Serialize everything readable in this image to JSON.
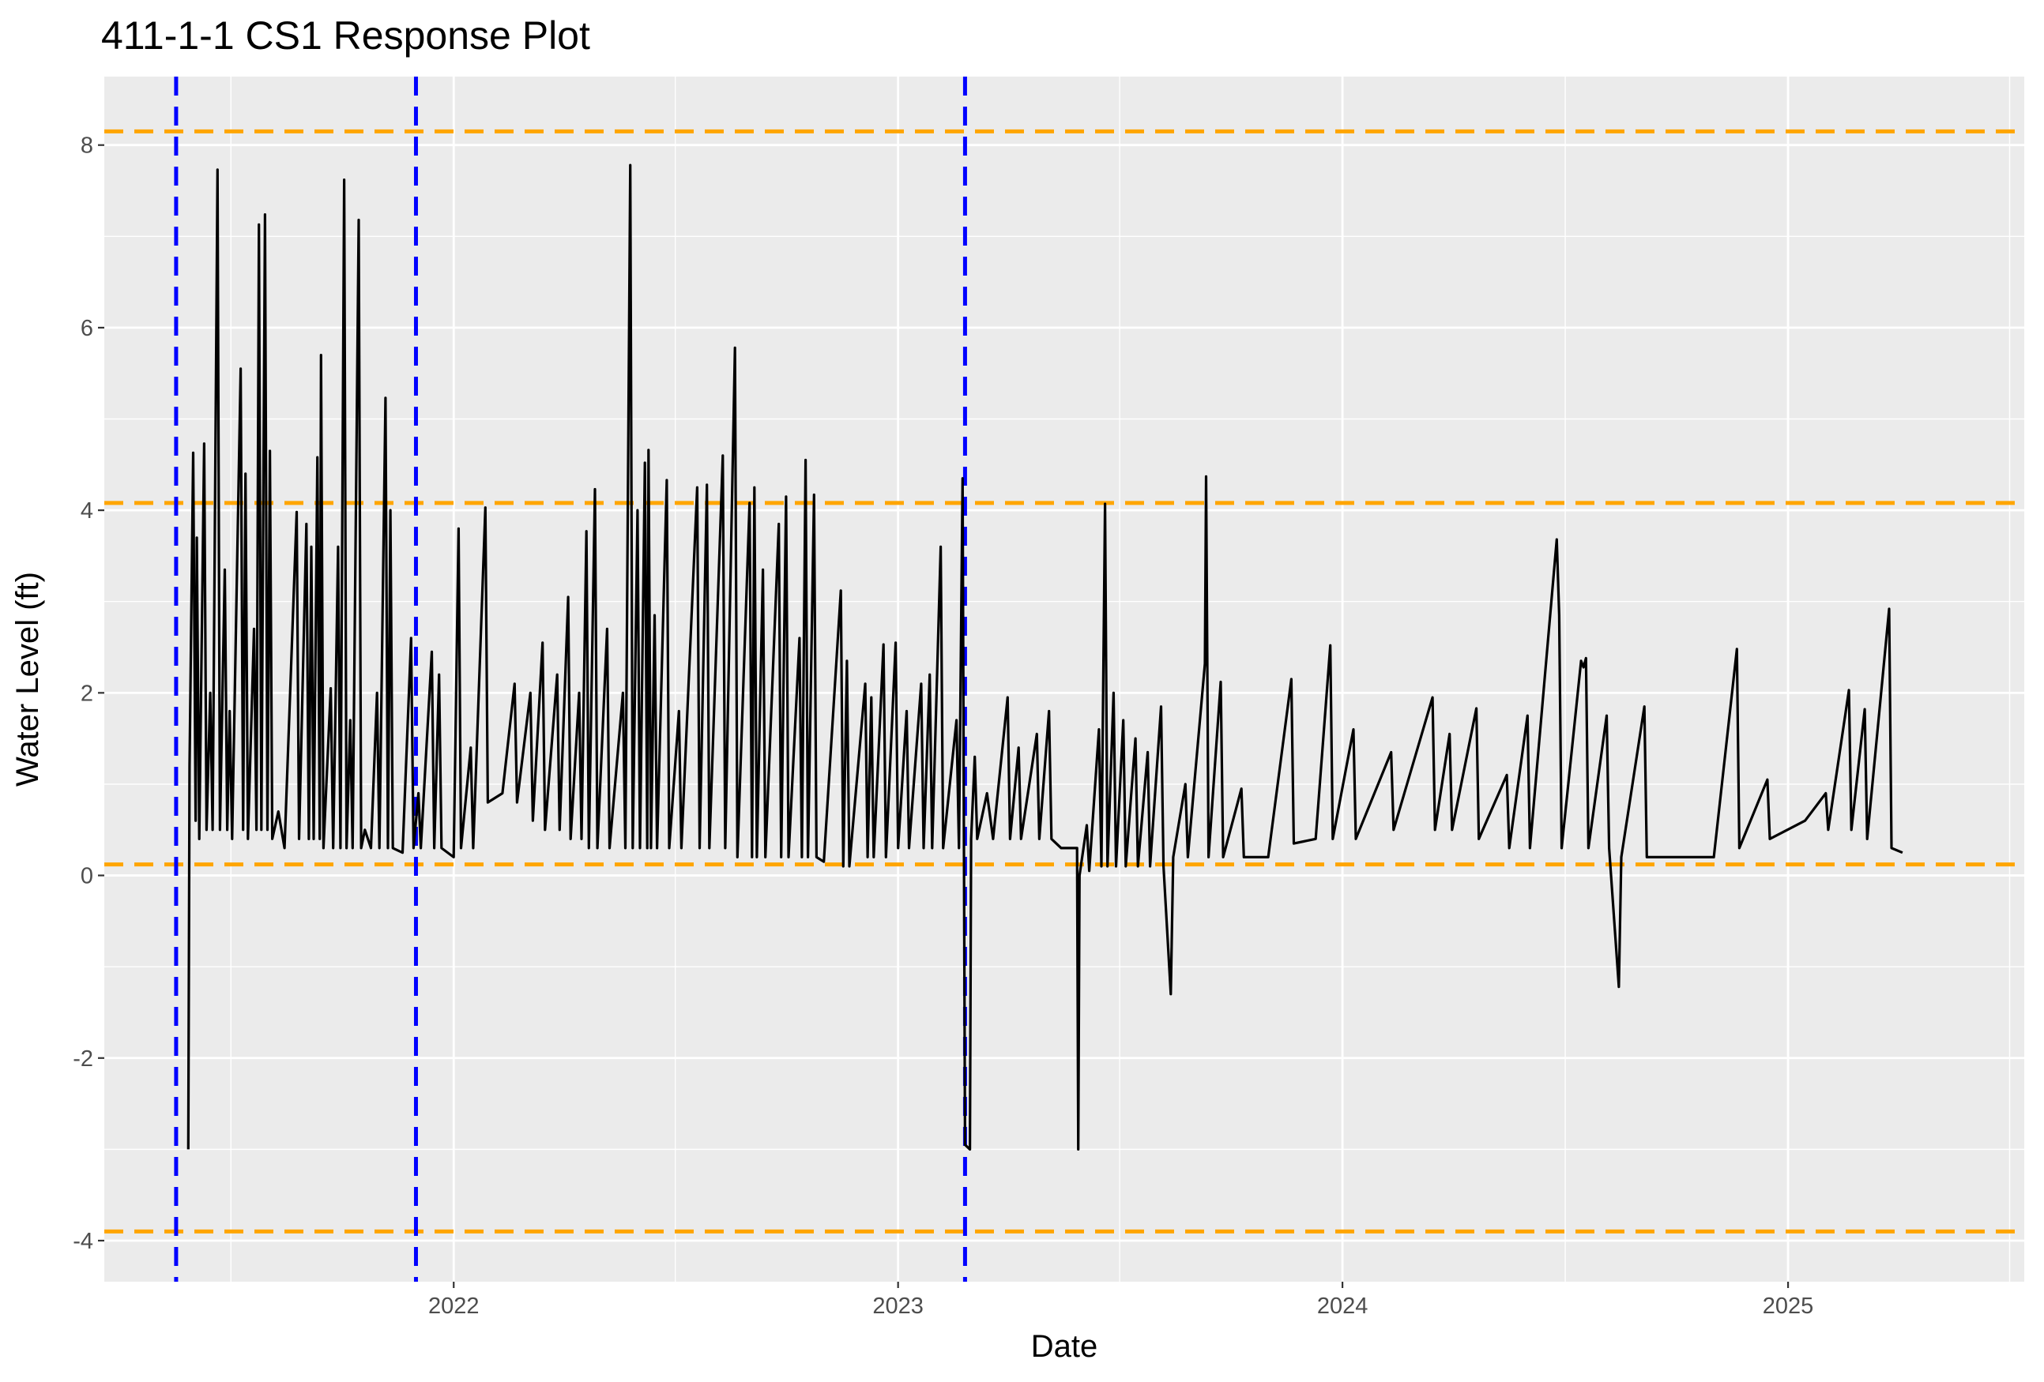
{
  "chart_data": {
    "type": "line",
    "title": "411-1-1 CS1 Response Plot",
    "xlabel": "Date",
    "ylabel": "Water Level (ft)",
    "xlim": [
      "2021-03-20",
      "2025-07-14"
    ],
    "ylim": [
      -4.45,
      8.75
    ],
    "x_ticks": [
      {
        "label": "2022",
        "date": "2022-01-01"
      },
      {
        "label": "2023",
        "date": "2023-01-01"
      },
      {
        "label": "2024",
        "date": "2024-01-01"
      },
      {
        "label": "2025",
        "date": "2025-01-01"
      }
    ],
    "y_ticks": [
      -4,
      -2,
      0,
      2,
      4,
      6,
      8
    ],
    "grid": true,
    "panel_background": "#ebebeb",
    "reference_lines": {
      "horizontal": {
        "color": "#FFA500",
        "style": "dashed",
        "values": [
          8.15,
          4.08,
          0.12,
          -3.9
        ]
      },
      "vertical": {
        "color": "#0000FF",
        "style": "dashed",
        "dates": [
          "2021-05-18",
          "2021-12-01",
          "2023-02-25"
        ]
      }
    },
    "series": [
      {
        "color": "#000000",
        "points": [
          [
            "2021-05-28",
            -3.0
          ],
          [
            "2021-05-29",
            1.2
          ],
          [
            "2021-06-01",
            4.63
          ],
          [
            "2021-06-03",
            0.6
          ],
          [
            "2021-06-04",
            3.7
          ],
          [
            "2021-06-06",
            0.4
          ],
          [
            "2021-06-10",
            4.73
          ],
          [
            "2021-06-12",
            0.5
          ],
          [
            "2021-06-15",
            2.0
          ],
          [
            "2021-06-17",
            0.5
          ],
          [
            "2021-06-21",
            7.73
          ],
          [
            "2021-06-23",
            0.5
          ],
          [
            "2021-06-27",
            3.35
          ],
          [
            "2021-06-29",
            0.5
          ],
          [
            "2021-07-01",
            1.8
          ],
          [
            "2021-07-03",
            0.4
          ],
          [
            "2021-07-10",
            5.55
          ],
          [
            "2021-07-12",
            0.5
          ],
          [
            "2021-07-14",
            4.4
          ],
          [
            "2021-07-16",
            0.4
          ],
          [
            "2021-07-21",
            2.7
          ],
          [
            "2021-07-23",
            0.5
          ],
          [
            "2021-07-25",
            7.13
          ],
          [
            "2021-07-27",
            0.5
          ],
          [
            "2021-07-30",
            7.24
          ],
          [
            "2021-08-01",
            0.5
          ],
          [
            "2021-08-03",
            4.65
          ],
          [
            "2021-08-05",
            0.4
          ],
          [
            "2021-08-10",
            0.7
          ],
          [
            "2021-08-15",
            0.3
          ],
          [
            "2021-08-25",
            3.98
          ],
          [
            "2021-08-27",
            0.4
          ],
          [
            "2021-09-02",
            3.85
          ],
          [
            "2021-09-04",
            0.4
          ],
          [
            "2021-09-06",
            3.6
          ],
          [
            "2021-09-08",
            0.4
          ],
          [
            "2021-09-11",
            4.58
          ],
          [
            "2021-09-13",
            0.4
          ],
          [
            "2021-09-14",
            5.7
          ],
          [
            "2021-09-16",
            0.3
          ],
          [
            "2021-09-22",
            2.05
          ],
          [
            "2021-09-24",
            0.3
          ],
          [
            "2021-09-28",
            3.6
          ],
          [
            "2021-09-30",
            0.3
          ],
          [
            "2021-10-03",
            7.62
          ],
          [
            "2021-10-05",
            0.3
          ],
          [
            "2021-10-08",
            1.7
          ],
          [
            "2021-10-10",
            0.3
          ],
          [
            "2021-10-15",
            7.18
          ],
          [
            "2021-10-17",
            0.3
          ],
          [
            "2021-10-20",
            0.5
          ],
          [
            "2021-10-25",
            0.3
          ],
          [
            "2021-10-30",
            2.0
          ],
          [
            "2021-11-01",
            0.3
          ],
          [
            "2021-11-06",
            5.23
          ],
          [
            "2021-11-08",
            0.3
          ],
          [
            "2021-11-10",
            4.0
          ],
          [
            "2021-11-12",
            0.3
          ],
          [
            "2021-11-20",
            0.25
          ],
          [
            "2021-11-27",
            2.6
          ],
          [
            "2021-11-29",
            0.3
          ],
          [
            "2021-12-03",
            0.9
          ],
          [
            "2021-12-05",
            0.3
          ],
          [
            "2021-12-14",
            2.45
          ],
          [
            "2021-12-16",
            0.3
          ],
          [
            "2021-12-20",
            2.2
          ],
          [
            "2021-12-22",
            0.3
          ],
          [
            "2022-01-01",
            0.2
          ],
          [
            "2022-01-05",
            3.8
          ],
          [
            "2022-01-07",
            0.3
          ],
          [
            "2022-01-15",
            1.4
          ],
          [
            "2022-01-17",
            0.3
          ],
          [
            "2022-01-27",
            4.03
          ],
          [
            "2022-01-29",
            0.8
          ],
          [
            "2022-02-10",
            0.9
          ],
          [
            "2022-02-20",
            2.1
          ],
          [
            "2022-02-22",
            0.8
          ],
          [
            "2022-03-05",
            2.0
          ],
          [
            "2022-03-07",
            0.6
          ],
          [
            "2022-03-15",
            2.55
          ],
          [
            "2022-03-17",
            0.5
          ],
          [
            "2022-03-27",
            2.2
          ],
          [
            "2022-03-29",
            0.5
          ],
          [
            "2022-04-05",
            3.05
          ],
          [
            "2022-04-07",
            0.4
          ],
          [
            "2022-04-14",
            2.0
          ],
          [
            "2022-04-16",
            0.4
          ],
          [
            "2022-04-20",
            3.77
          ],
          [
            "2022-04-22",
            0.3
          ],
          [
            "2022-04-27",
            4.23
          ],
          [
            "2022-04-29",
            0.3
          ],
          [
            "2022-05-07",
            2.7
          ],
          [
            "2022-05-09",
            0.3
          ],
          [
            "2022-05-20",
            2.0
          ],
          [
            "2022-05-22",
            0.3
          ],
          [
            "2022-05-26",
            7.78
          ],
          [
            "2022-05-28",
            0.3
          ],
          [
            "2022-06-01",
            4.0
          ],
          [
            "2022-06-03",
            0.3
          ],
          [
            "2022-06-07",
            4.52
          ],
          [
            "2022-06-09",
            0.3
          ],
          [
            "2022-06-10",
            4.66
          ],
          [
            "2022-06-12",
            0.3
          ],
          [
            "2022-06-15",
            2.85
          ],
          [
            "2022-06-17",
            0.3
          ],
          [
            "2022-06-25",
            4.33
          ],
          [
            "2022-06-27",
            0.3
          ],
          [
            "2022-07-05",
            1.8
          ],
          [
            "2022-07-07",
            0.3
          ],
          [
            "2022-07-20",
            4.25
          ],
          [
            "2022-07-22",
            0.3
          ],
          [
            "2022-07-28",
            4.28
          ],
          [
            "2022-07-30",
            0.3
          ],
          [
            "2022-08-10",
            4.6
          ],
          [
            "2022-08-12",
            0.3
          ],
          [
            "2022-08-20",
            5.78
          ],
          [
            "2022-08-22",
            0.2
          ],
          [
            "2022-09-01",
            4.08
          ],
          [
            "2022-09-03",
            0.2
          ],
          [
            "2022-09-05",
            4.25
          ],
          [
            "2022-09-07",
            0.2
          ],
          [
            "2022-09-12",
            3.35
          ],
          [
            "2022-09-14",
            0.2
          ],
          [
            "2022-09-25",
            3.85
          ],
          [
            "2022-09-27",
            0.2
          ],
          [
            "2022-10-01",
            4.15
          ],
          [
            "2022-10-03",
            0.2
          ],
          [
            "2022-10-12",
            2.6
          ],
          [
            "2022-10-14",
            0.2
          ],
          [
            "2022-10-17",
            4.55
          ],
          [
            "2022-10-19",
            0.2
          ],
          [
            "2022-10-24",
            4.17
          ],
          [
            "2022-10-26",
            0.2
          ],
          [
            "2022-11-01",
            0.15
          ],
          [
            "2022-11-15",
            3.12
          ],
          [
            "2022-11-17",
            0.1
          ],
          [
            "2022-11-20",
            2.35
          ],
          [
            "2022-11-22",
            0.1
          ],
          [
            "2022-12-05",
            2.1
          ],
          [
            "2022-12-07",
            0.2
          ],
          [
            "2022-12-10",
            1.95
          ],
          [
            "2022-12-12",
            0.2
          ],
          [
            "2022-12-20",
            2.53
          ],
          [
            "2022-12-22",
            0.2
          ],
          [
            "2022-12-30",
            2.55
          ],
          [
            "2023-01-01",
            0.3
          ],
          [
            "2023-01-08",
            1.8
          ],
          [
            "2023-01-10",
            0.3
          ],
          [
            "2023-01-20",
            2.1
          ],
          [
            "2023-01-22",
            0.3
          ],
          [
            "2023-01-27",
            2.2
          ],
          [
            "2023-01-29",
            0.3
          ],
          [
            "2023-02-05",
            3.6
          ],
          [
            "2023-02-07",
            0.3
          ],
          [
            "2023-02-18",
            1.7
          ],
          [
            "2023-02-20",
            0.3
          ],
          [
            "2023-02-23",
            4.35
          ],
          [
            "2023-02-25",
            -2.95
          ],
          [
            "2023-03-01",
            -3.0
          ],
          [
            "2023-03-02",
            0.4
          ],
          [
            "2023-03-05",
            1.3
          ],
          [
            "2023-03-07",
            0.4
          ],
          [
            "2023-03-15",
            0.9
          ],
          [
            "2023-03-20",
            0.4
          ],
          [
            "2023-04-01",
            1.95
          ],
          [
            "2023-04-03",
            0.4
          ],
          [
            "2023-04-10",
            1.4
          ],
          [
            "2023-04-12",
            0.4
          ],
          [
            "2023-04-25",
            1.55
          ],
          [
            "2023-04-27",
            0.4
          ],
          [
            "2023-05-05",
            1.8
          ],
          [
            "2023-05-07",
            0.4
          ],
          [
            "2023-05-15",
            0.3
          ],
          [
            "2023-05-28",
            0.3
          ],
          [
            "2023-05-29",
            -3.0
          ],
          [
            "2023-05-30",
            0.0
          ],
          [
            "2023-06-05",
            0.55
          ],
          [
            "2023-06-07",
            0.05
          ],
          [
            "2023-06-15",
            1.6
          ],
          [
            "2023-06-17",
            0.1
          ],
          [
            "2023-06-20",
            4.07
          ],
          [
            "2023-06-22",
            0.1
          ],
          [
            "2023-06-27",
            2.0
          ],
          [
            "2023-06-29",
            0.1
          ],
          [
            "2023-07-05",
            1.7
          ],
          [
            "2023-07-07",
            0.1
          ],
          [
            "2023-07-15",
            1.5
          ],
          [
            "2023-07-17",
            0.1
          ],
          [
            "2023-07-25",
            1.35
          ],
          [
            "2023-07-27",
            0.1
          ],
          [
            "2023-08-05",
            1.85
          ],
          [
            "2023-08-07",
            0.1
          ],
          [
            "2023-08-13",
            -1.3
          ],
          [
            "2023-08-15",
            0.2
          ],
          [
            "2023-08-25",
            1.0
          ],
          [
            "2023-08-27",
            0.2
          ],
          [
            "2023-09-10",
            2.32
          ],
          [
            "2023-09-11",
            4.37
          ],
          [
            "2023-09-13",
            0.2
          ],
          [
            "2023-09-23",
            2.12
          ],
          [
            "2023-09-25",
            0.2
          ],
          [
            "2023-10-10",
            0.95
          ],
          [
            "2023-10-12",
            0.2
          ],
          [
            "2023-11-01",
            0.2
          ],
          [
            "2023-11-20",
            2.15
          ],
          [
            "2023-11-22",
            0.35
          ],
          [
            "2023-12-10",
            0.4
          ],
          [
            "2023-12-22",
            2.52
          ],
          [
            "2023-12-24",
            0.4
          ],
          [
            "2024-01-10",
            1.6
          ],
          [
            "2024-01-12",
            0.4
          ],
          [
            "2024-02-10",
            1.35
          ],
          [
            "2024-02-12",
            0.5
          ],
          [
            "2024-03-15",
            1.95
          ],
          [
            "2024-03-17",
            0.5
          ],
          [
            "2024-03-29",
            1.55
          ],
          [
            "2024-03-31",
            0.5
          ],
          [
            "2024-04-20",
            1.83
          ],
          [
            "2024-04-22",
            0.4
          ],
          [
            "2024-05-15",
            1.1
          ],
          [
            "2024-05-17",
            0.3
          ],
          [
            "2024-06-01",
            1.75
          ],
          [
            "2024-06-03",
            0.3
          ],
          [
            "2024-06-25",
            3.68
          ],
          [
            "2024-06-27",
            2.85
          ],
          [
            "2024-06-29",
            0.3
          ],
          [
            "2024-07-15",
            2.35
          ],
          [
            "2024-07-17",
            2.28
          ],
          [
            "2024-07-19",
            2.38
          ],
          [
            "2024-07-21",
            0.3
          ],
          [
            "2024-08-05",
            1.75
          ],
          [
            "2024-08-07",
            0.3
          ],
          [
            "2024-08-15",
            -1.22
          ],
          [
            "2024-08-17",
            0.2
          ],
          [
            "2024-09-05",
            1.85
          ],
          [
            "2024-09-07",
            0.2
          ],
          [
            "2024-10-01",
            0.2
          ],
          [
            "2024-11-01",
            0.2
          ],
          [
            "2024-11-20",
            2.48
          ],
          [
            "2024-11-22",
            0.3
          ],
          [
            "2024-12-15",
            1.05
          ],
          [
            "2024-12-17",
            0.4
          ],
          [
            "2025-01-15",
            0.6
          ],
          [
            "2025-02-01",
            0.9
          ],
          [
            "2025-02-03",
            0.5
          ],
          [
            "2025-02-20",
            2.03
          ],
          [
            "2025-02-22",
            0.5
          ],
          [
            "2025-03-05",
            1.82
          ],
          [
            "2025-03-07",
            0.4
          ],
          [
            "2025-03-25",
            2.92
          ],
          [
            "2025-03-27",
            0.3
          ],
          [
            "2025-04-05",
            0.25
          ]
        ]
      }
    ]
  }
}
